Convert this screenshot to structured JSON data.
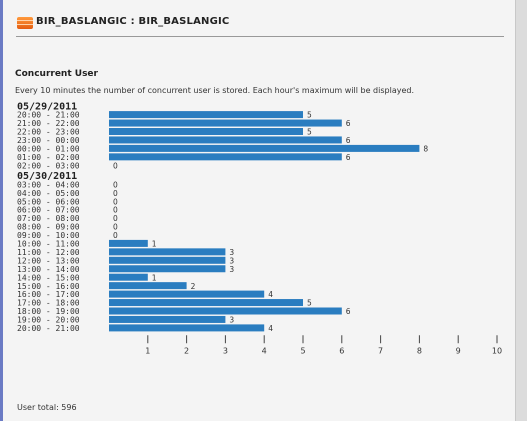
{
  "header": {
    "title": "BIR_BASLANGIC : BIR_BASLANGIC"
  },
  "section": {
    "title": "Concurrent User",
    "description": "Every 10 minutes the number of concurrent user is stored. Each hour's maximum will be displayed."
  },
  "footer": {
    "total_text": "User total: 596"
  },
  "colors": {
    "bar": "#2a7dc0",
    "accent": "#e85f12"
  },
  "chart_data": {
    "type": "bar",
    "orientation": "horizontal",
    "xlim": [
      0,
      10
    ],
    "ticks": [
      1,
      2,
      3,
      4,
      5,
      6,
      7,
      8,
      9,
      10
    ],
    "groups": [
      {
        "date": "05/29/2011",
        "rows": [
          {
            "label": "20:00 - 21:00",
            "value": 5
          },
          {
            "label": "21:00 - 22:00",
            "value": 6
          },
          {
            "label": "22:00 - 23:00",
            "value": 5
          },
          {
            "label": "23:00 - 00:00",
            "value": 6
          },
          {
            "label": "00:00 - 01:00",
            "value": 8
          },
          {
            "label": "01:00 - 02:00",
            "value": 6
          },
          {
            "label": "02:00 - 03:00",
            "value": 0
          }
        ]
      },
      {
        "date": "05/30/2011",
        "rows": [
          {
            "label": "03:00 - 04:00",
            "value": 0
          },
          {
            "label": "04:00 - 05:00",
            "value": 0
          },
          {
            "label": "05:00 - 06:00",
            "value": 0
          },
          {
            "label": "06:00 - 07:00",
            "value": 0
          },
          {
            "label": "07:00 - 08:00",
            "value": 0
          },
          {
            "label": "08:00 - 09:00",
            "value": 0
          },
          {
            "label": "09:00 - 10:00",
            "value": 0
          },
          {
            "label": "10:00 - 11:00",
            "value": 1
          },
          {
            "label": "11:00 - 12:00",
            "value": 3
          },
          {
            "label": "12:00 - 13:00",
            "value": 3
          },
          {
            "label": "13:00 - 14:00",
            "value": 3
          },
          {
            "label": "14:00 - 15:00",
            "value": 1
          },
          {
            "label": "15:00 - 16:00",
            "value": 2
          },
          {
            "label": "16:00 - 17:00",
            "value": 4
          },
          {
            "label": "17:00 - 18:00",
            "value": 5
          },
          {
            "label": "18:00 - 19:00",
            "value": 6
          },
          {
            "label": "19:00 - 20:00",
            "value": 3
          },
          {
            "label": "20:00 - 21:00",
            "value": 4
          }
        ]
      }
    ]
  }
}
